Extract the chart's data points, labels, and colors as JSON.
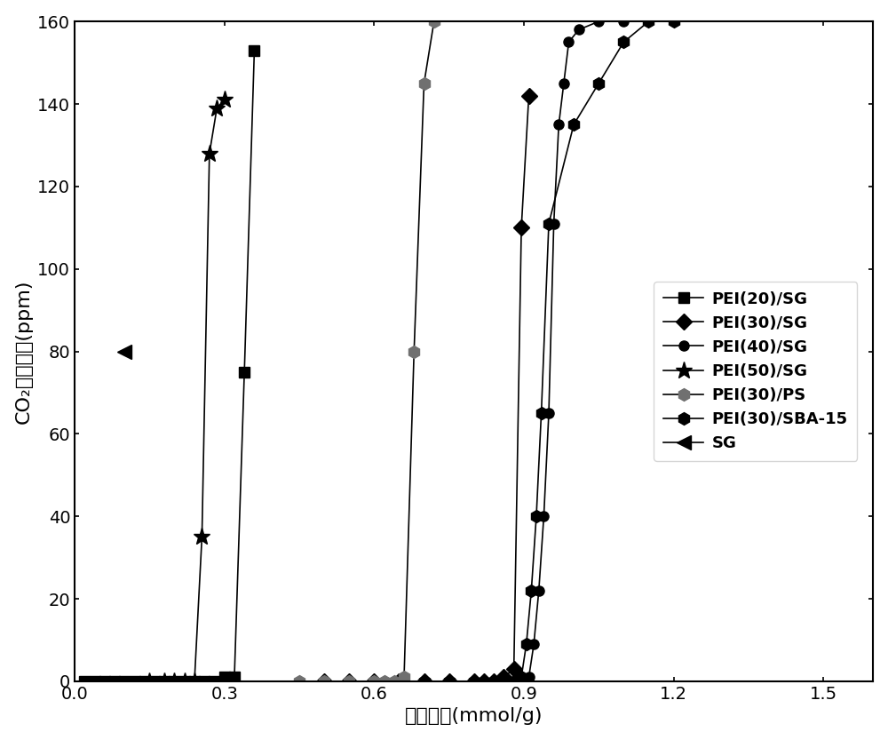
{
  "series": [
    {
      "label": "PEI(20)/SG",
      "marker": "s",
      "color": "#000000",
      "x": [
        0.02,
        0.04,
        0.06,
        0.08,
        0.1,
        0.12,
        0.14,
        0.16,
        0.18,
        0.2,
        0.22,
        0.24,
        0.26,
        0.28,
        0.3,
        0.32,
        0.34,
        0.36
      ],
      "y": [
        0,
        0,
        0,
        0,
        0,
        0,
        0,
        0,
        0,
        0,
        0,
        0,
        0,
        0,
        1,
        1,
        75,
        153
      ]
    },
    {
      "label": "PEI(30)/SG",
      "marker": "D",
      "color": "#000000",
      "x": [
        0.5,
        0.55,
        0.6,
        0.65,
        0.7,
        0.75,
        0.8,
        0.82,
        0.84,
        0.86,
        0.88,
        0.895,
        0.91
      ],
      "y": [
        0,
        0,
        0,
        0,
        0,
        0,
        0,
        0,
        0,
        1,
        3,
        110,
        142
      ]
    },
    {
      "label": "PEI(40)/SG",
      "marker": "o",
      "color": "#000000",
      "x": [
        0.55,
        0.6,
        0.65,
        0.7,
        0.75,
        0.8,
        0.82,
        0.84,
        0.86,
        0.88,
        0.9,
        0.91,
        0.92,
        0.93,
        0.94,
        0.95,
        0.96,
        0.97,
        0.98,
        0.99,
        1.01,
        1.05,
        1.1,
        1.15,
        1.2
      ],
      "y": [
        0,
        0,
        0,
        0,
        0,
        0,
        0,
        0,
        0,
        0,
        0,
        1,
        9,
        22,
        40,
        65,
        111,
        135,
        145,
        155,
        158,
        160,
        160,
        160,
        160
      ]
    },
    {
      "label": "PEI(50)/SG",
      "marker": "*",
      "color": "#000000",
      "x": [
        0.15,
        0.18,
        0.2,
        0.22,
        0.24,
        0.255,
        0.27,
        0.285,
        0.3
      ],
      "y": [
        0,
        0,
        0,
        0,
        0,
        35,
        128,
        139,
        141
      ]
    },
    {
      "label": "PEI(30)/PS",
      "marker": "h",
      "color": "#000000",
      "markercolor": "#707070",
      "x": [
        0.45,
        0.5,
        0.55,
        0.6,
        0.62,
        0.64,
        0.66,
        0.68,
        0.7,
        0.72
      ],
      "y": [
        0,
        0,
        0,
        0,
        0,
        0,
        1,
        80,
        145,
        160
      ]
    },
    {
      "label": "PEI(30)/SBA-15",
      "marker": "h",
      "color": "#000000",
      "markercolor": "#000000",
      "x": [
        0.7,
        0.75,
        0.8,
        0.82,
        0.84,
        0.86,
        0.88,
        0.895,
        0.905,
        0.915,
        0.925,
        0.935,
        0.95,
        1.0,
        1.05,
        1.1,
        1.15,
        1.2
      ],
      "y": [
        0,
        0,
        0,
        0,
        0,
        0,
        0,
        1,
        9,
        22,
        40,
        65,
        111,
        135,
        145,
        155,
        160,
        160
      ]
    },
    {
      "label": "SG",
      "marker": "<",
      "color": "#000000",
      "markercolor": "#000000",
      "x": [
        0.1
      ],
      "y": [
        80
      ]
    }
  ],
  "xlabel": "透过容量(mmol/g)",
  "ylabel": "CO₂出口浓度(ppm)",
  "xlim": [
    0,
    1.6
  ],
  "ylim": [
    0,
    160
  ],
  "xticks": [
    0,
    0.3,
    0.6,
    0.9,
    1.2,
    1.5
  ],
  "yticks": [
    0,
    20,
    40,
    60,
    80,
    100,
    120,
    140,
    160
  ],
  "background_color": "#ffffff",
  "markersize": 9,
  "linewidth": 1.2
}
